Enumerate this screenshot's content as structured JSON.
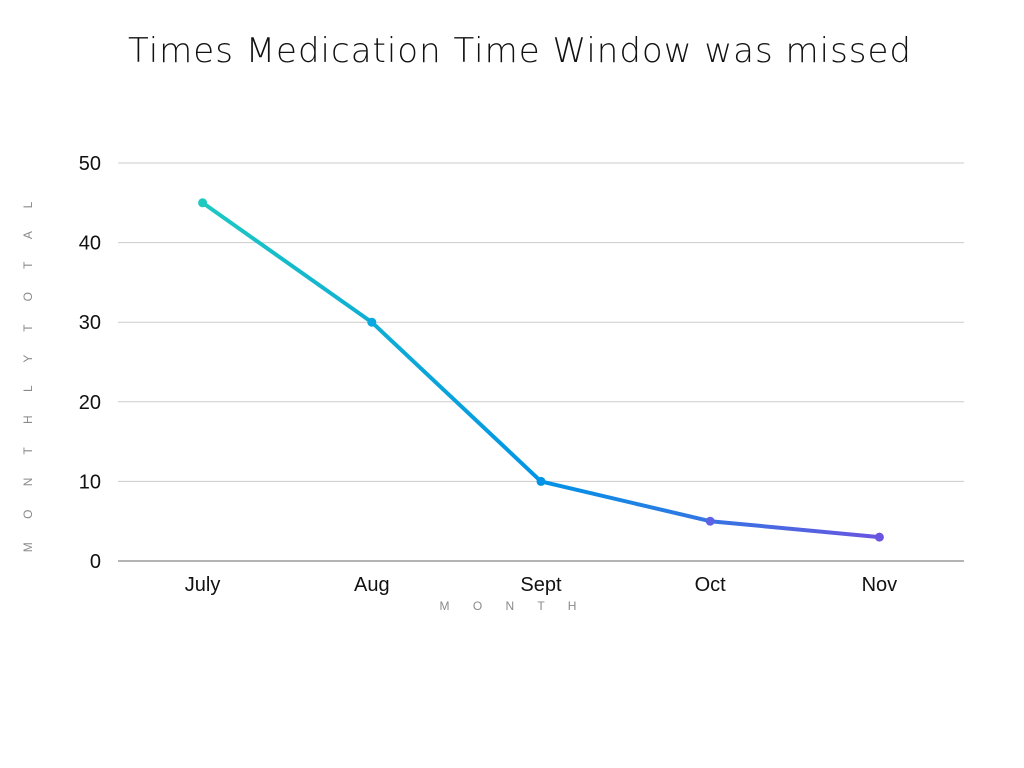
{
  "chart_data": {
    "type": "line",
    "title": "Times Medication Time Window was missed",
    "xlabel": "M O N T H",
    "ylabel": "M O N T H L Y   T O T A L",
    "categories": [
      "July",
      "Aug",
      "Sept",
      "Oct",
      "Nov"
    ],
    "series": [
      {
        "values": [
          45,
          30,
          10,
          5,
          3
        ]
      }
    ],
    "ylim": [
      0,
      50
    ],
    "yticks": [
      0,
      10,
      20,
      30,
      40,
      50
    ],
    "grid": true,
    "legend": "none",
    "colors": {
      "gradient_start": "#1ec9c1",
      "gradient_mid": "#0094e6",
      "gradient_end": "#6a55e0"
    }
  }
}
